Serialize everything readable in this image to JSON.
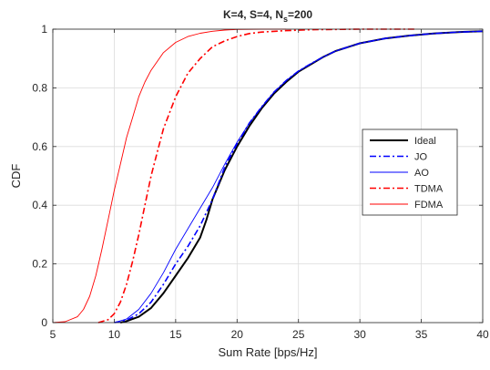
{
  "chart_data": {
    "type": "line",
    "title": {
      "main": "K=4, S=4, N",
      "subscript": "s",
      "suffix": "=200"
    },
    "xlabel": "Sum Rate [bps/Hz]",
    "ylabel": "CDF",
    "xlim": [
      5,
      40
    ],
    "ylim": [
      0,
      1
    ],
    "xticks": [
      5,
      10,
      15,
      20,
      25,
      30,
      35,
      40
    ],
    "yticks": [
      0,
      0.2,
      0.4,
      0.6,
      0.8,
      1
    ],
    "xtick_labels": [
      "5",
      "10",
      "15",
      "20",
      "25",
      "30",
      "35",
      "40"
    ],
    "ytick_labels": [
      "0",
      "0.2",
      "0.4",
      "0.6",
      "0.8",
      "1"
    ],
    "grid": true,
    "legend_position": "right",
    "series": [
      {
        "name": "Ideal",
        "color": "#000000",
        "style": "solid",
        "x": [
          10.5,
          11,
          12,
          13,
          14,
          15,
          16,
          17,
          17.5,
          18,
          19,
          20,
          21,
          22,
          23,
          24,
          25,
          26,
          27,
          28,
          30,
          32,
          34,
          36,
          38,
          40
        ],
        "y": [
          0,
          0.005,
          0.02,
          0.05,
          0.1,
          0.16,
          0.22,
          0.29,
          0.35,
          0.42,
          0.52,
          0.6,
          0.67,
          0.73,
          0.78,
          0.82,
          0.855,
          0.88,
          0.905,
          0.925,
          0.952,
          0.968,
          0.978,
          0.985,
          0.99,
          0.993
        ]
      },
      {
        "name": "JO",
        "color": "#0000ff",
        "style": "dashdot",
        "x": [
          10,
          11,
          12,
          13,
          14,
          15,
          16,
          17,
          18,
          19,
          20,
          21,
          22,
          23,
          24,
          25,
          26,
          27,
          28,
          30,
          32,
          34,
          36,
          38,
          40
        ],
        "y": [
          0,
          0.008,
          0.03,
          0.07,
          0.13,
          0.2,
          0.26,
          0.33,
          0.42,
          0.53,
          0.61,
          0.68,
          0.735,
          0.785,
          0.825,
          0.857,
          0.882,
          0.905,
          0.925,
          0.952,
          0.968,
          0.978,
          0.985,
          0.99,
          0.993
        ]
      },
      {
        "name": "AO",
        "color": "#0000ff",
        "style": "solid-thin",
        "x": [
          10,
          11,
          12,
          13,
          14,
          15,
          16,
          17,
          18,
          19,
          20,
          21,
          22,
          23,
          24,
          25,
          26,
          27,
          28,
          30,
          32,
          34,
          36,
          38,
          40
        ],
        "y": [
          0,
          0.012,
          0.045,
          0.1,
          0.17,
          0.25,
          0.32,
          0.39,
          0.46,
          0.54,
          0.615,
          0.68,
          0.735,
          0.785,
          0.825,
          0.857,
          0.882,
          0.905,
          0.925,
          0.952,
          0.968,
          0.978,
          0.985,
          0.99,
          0.993
        ]
      },
      {
        "name": "TDMA",
        "color": "#ff0000",
        "style": "dashdot",
        "x": [
          8.7,
          9.5,
          10,
          10.5,
          11,
          11.5,
          12,
          12.5,
          13,
          13.5,
          14,
          15,
          16,
          17,
          18,
          19,
          20,
          21,
          22,
          24,
          26,
          28,
          30,
          32,
          34.5
        ],
        "y": [
          0,
          0.01,
          0.03,
          0.07,
          0.13,
          0.21,
          0.3,
          0.4,
          0.5,
          0.58,
          0.66,
          0.77,
          0.85,
          0.9,
          0.94,
          0.96,
          0.975,
          0.985,
          0.99,
          0.995,
          0.998,
          0.999,
          1,
          1,
          1
        ]
      },
      {
        "name": "FDMA",
        "color": "#ff0000",
        "style": "solid-thin",
        "x": [
          5,
          6,
          7,
          7.5,
          8,
          8.5,
          9,
          9.5,
          10,
          10.5,
          11,
          11.5,
          12,
          12.5,
          13,
          14,
          15,
          16,
          17,
          18,
          19,
          20,
          22,
          24
        ],
        "y": [
          0,
          0.003,
          0.02,
          0.045,
          0.09,
          0.16,
          0.25,
          0.35,
          0.45,
          0.54,
          0.63,
          0.7,
          0.77,
          0.82,
          0.86,
          0.92,
          0.955,
          0.975,
          0.986,
          0.993,
          0.997,
          0.999,
          1,
          1
        ]
      }
    ]
  }
}
